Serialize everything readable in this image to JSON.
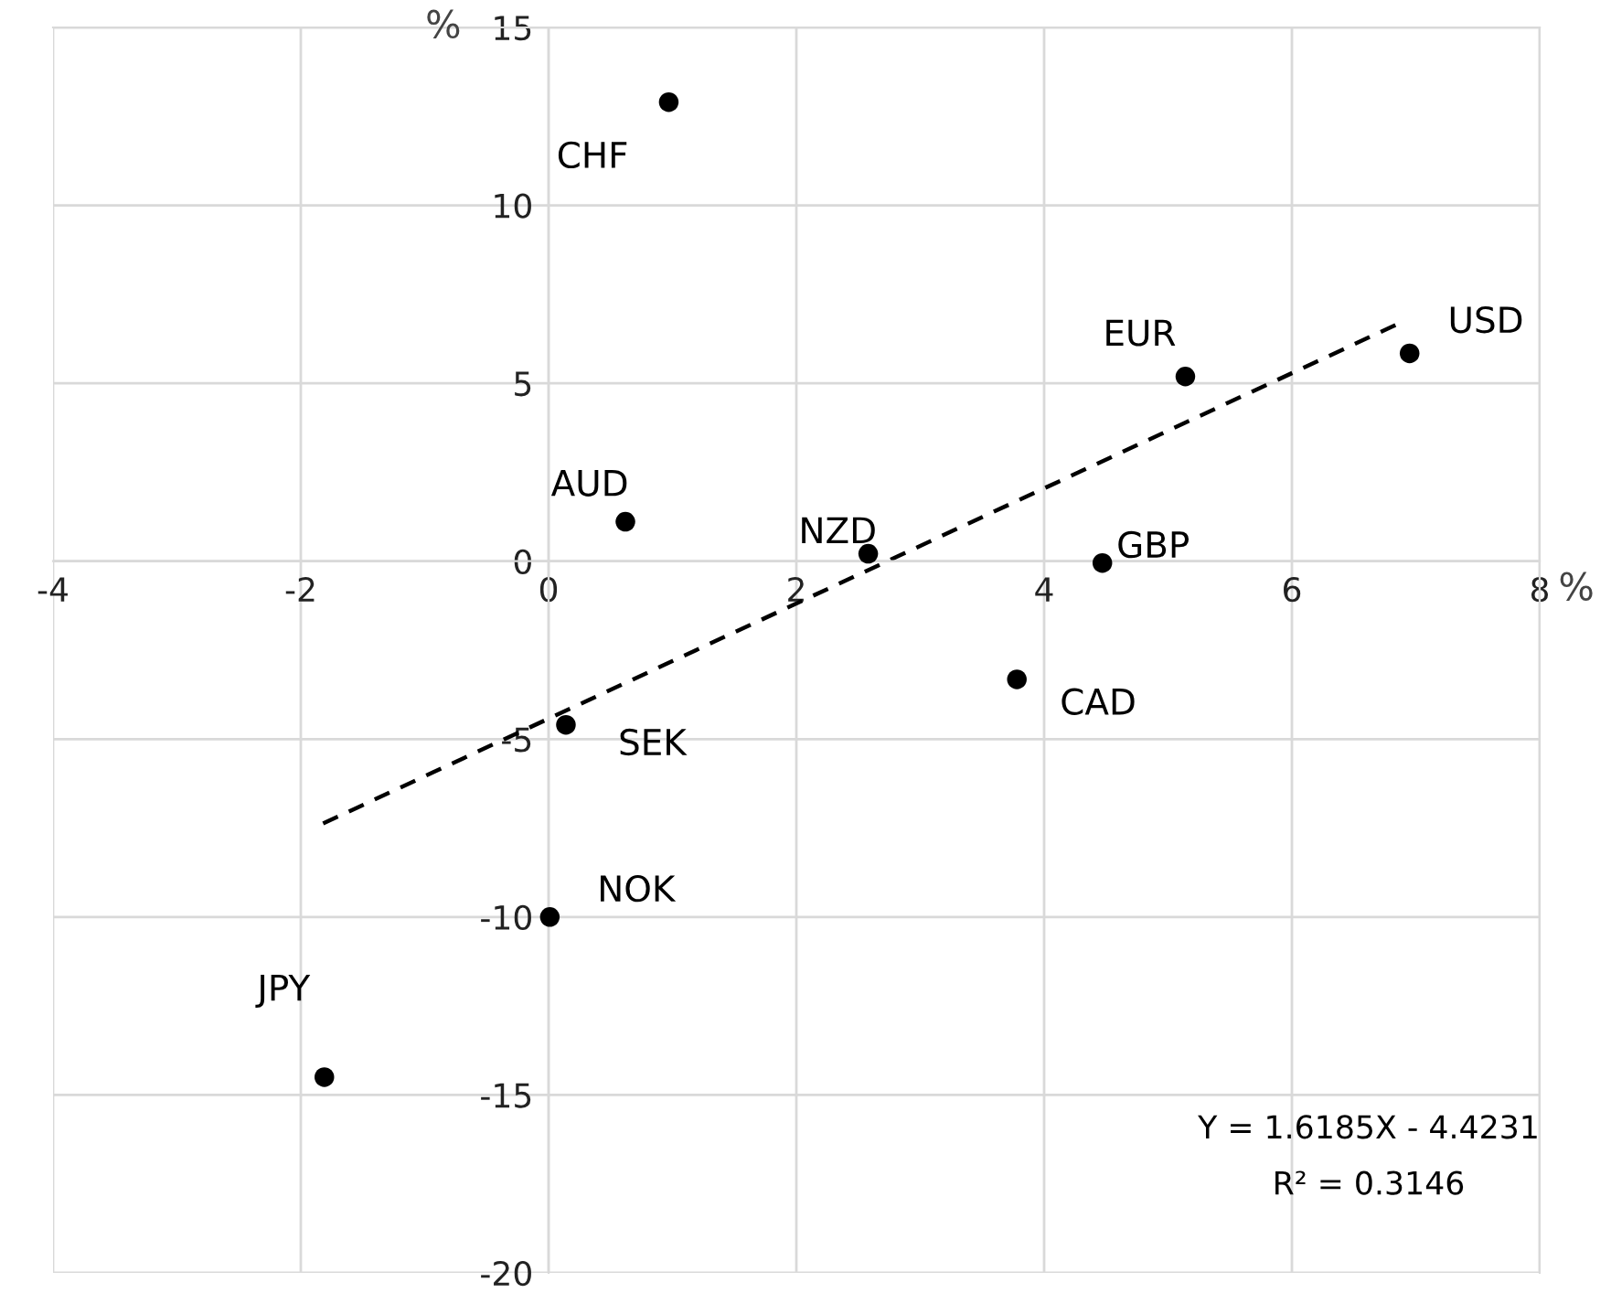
{
  "chart_data": {
    "type": "scatter",
    "xlabel": "%",
    "ylabel": "%",
    "xlim": [
      -4,
      8
    ],
    "xticks": [
      -4,
      -2,
      0,
      2,
      4,
      6,
      8
    ],
    "ylim": [
      -20,
      15
    ],
    "yticks": [
      -20,
      -15,
      -10,
      -5,
      0,
      5,
      10,
      15
    ],
    "grid": true,
    "series": [
      {
        "marker": "circle",
        "color": "#000000",
        "x": [
          0.97,
          0.62,
          2.58,
          4.47,
          5.14,
          6.95,
          0.14,
          0.01,
          -1.81,
          3.78
        ],
        "values": [
          12.9,
          1.11,
          0.21,
          -0.05,
          5.19,
          5.84,
          -4.6,
          -10.0,
          -14.5,
          -3.32
        ]
      },
      {
        "type": "line",
        "color": "#000000",
        "line_style": "dashed",
        "x": [
          -1.82,
          6.85
        ],
        "values": [
          -7.37,
          6.66
        ]
      }
    ],
    "annotations": [
      {
        "text": "CHF",
        "x": 0.97,
        "y": 12.9
      },
      {
        "text": "AUD",
        "x": 0.62,
        "y": 1.11
      },
      {
        "text": "NZD",
        "x": 2.58,
        "y": 0.21
      },
      {
        "text": "GBP",
        "x": 4.47,
        "y": -0.05
      },
      {
        "text": "EUR",
        "x": 5.14,
        "y": 5.19
      },
      {
        "text": "USD",
        "x": 6.95,
        "y": 5.84
      },
      {
        "text": "SEK",
        "x": 0.14,
        "y": -4.6
      },
      {
        "text": "NOK",
        "x": 0.01,
        "y": -10.0
      },
      {
        "text": "JPY",
        "x": -1.81,
        "y": -14.5
      },
      {
        "text": "CAD",
        "x": 3.78,
        "y": -3.32
      },
      "Y = 1.6185X - 4.4231",
      "R² = 0.3146"
    ]
  }
}
